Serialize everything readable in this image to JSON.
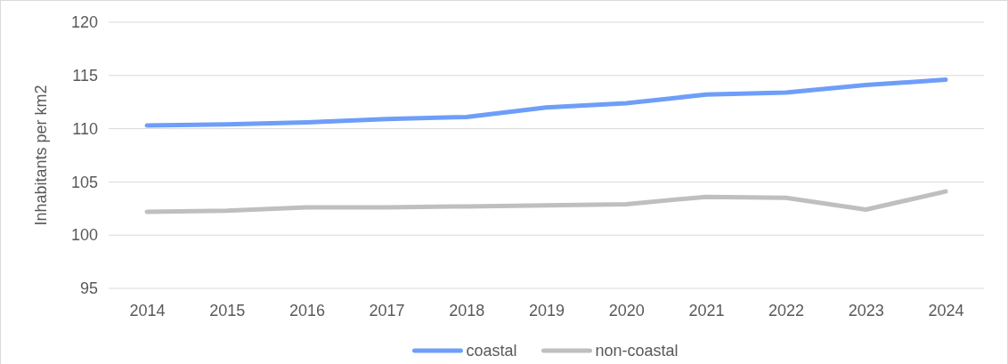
{
  "chart_data": {
    "type": "line",
    "ylabel": "Inhabitants per km2",
    "categories": [
      "2014",
      "2015",
      "2016",
      "2017",
      "2018",
      "2019",
      "2020",
      "2021",
      "2022",
      "2023",
      "2024"
    ],
    "series": [
      {
        "name": "coastal",
        "color": "#6e9ef8",
        "values": [
          110.3,
          110.4,
          110.6,
          110.9,
          111.1,
          112.0,
          112.4,
          113.2,
          113.4,
          114.1,
          114.6
        ]
      },
      {
        "name": "non-coastal",
        "color": "#bfbfbf",
        "values": [
          102.2,
          102.3,
          102.6,
          102.6,
          102.7,
          102.8,
          102.9,
          103.6,
          103.5,
          102.4,
          104.1
        ]
      }
    ],
    "ylim": [
      95,
      120
    ],
    "yticks": [
      95,
      100,
      105,
      110,
      115,
      120
    ],
    "grid": "y",
    "legend": "bottom",
    "marker": "none",
    "line_style": "solid"
  }
}
